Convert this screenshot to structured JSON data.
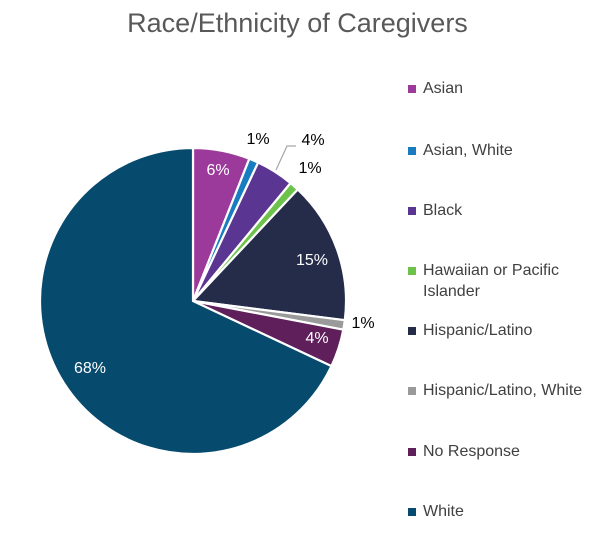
{
  "chart_data": {
    "type": "pie",
    "title": "Race/Ethnicity of Caregivers",
    "legend_position": "right",
    "slices": [
      {
        "name": "Asian",
        "value": 6,
        "label": "6%",
        "color": "#9b3a9b"
      },
      {
        "name": "Asian, White",
        "value": 1,
        "label": "1%",
        "color": "#1a7cc0"
      },
      {
        "name": "Black",
        "value": 4,
        "label": "4%",
        "color": "#5b3592"
      },
      {
        "name": "Hawaiian or Pacific Islander",
        "value": 1,
        "label": "1%",
        "color": "#6cc24a"
      },
      {
        "name": "Hispanic/Latino",
        "value": 15,
        "label": "15%",
        "color": "#252c4a"
      },
      {
        "name": "Hispanic/Latino, White",
        "value": 1,
        "label": "1%",
        "color": "#9a9a9a"
      },
      {
        "name": "No Response",
        "value": 4,
        "label": "4%",
        "color": "#5e1f5a"
      },
      {
        "name": "White",
        "value": 68,
        "label": "68%",
        "color": "#064a6e"
      }
    ]
  }
}
